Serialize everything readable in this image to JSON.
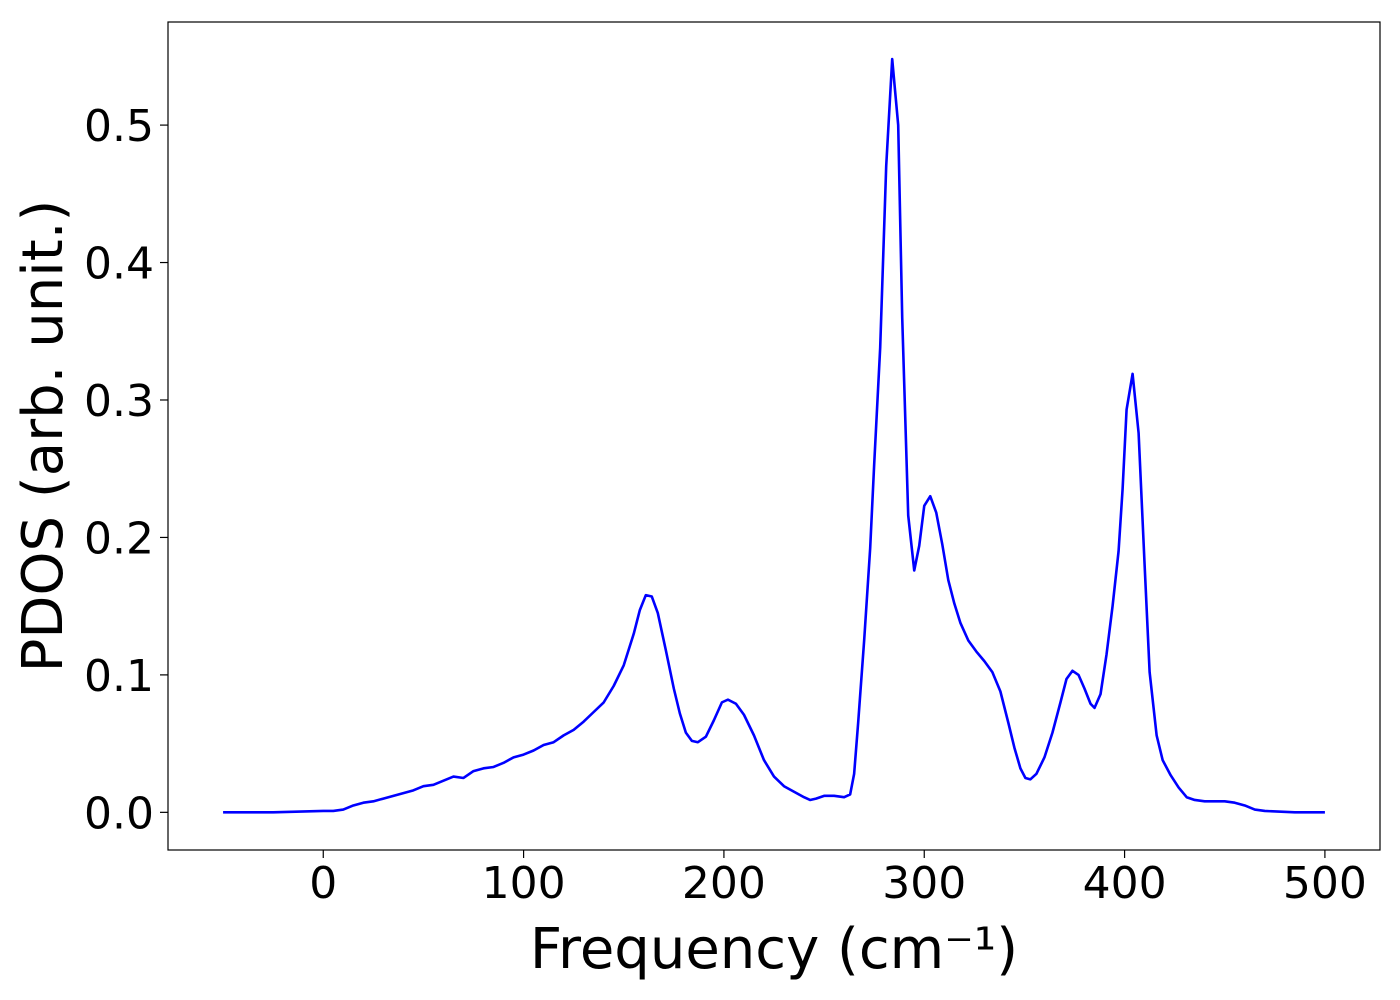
{
  "chart_data": {
    "type": "line",
    "xlabel": "Frequency (cm⁻¹)",
    "ylabel": "PDOS (arb. unit.)",
    "xlim": [
      -77.5,
      527.5
    ],
    "ylim": [
      -0.0274,
      0.575
    ],
    "xticks": [
      0,
      100,
      200,
      300,
      400,
      500
    ],
    "yticks": [
      {
        "value": 0,
        "label": "0.0"
      },
      {
        "value": 0.1,
        "label": "0.1"
      },
      {
        "value": 0.2,
        "label": "0.2"
      },
      {
        "value": 0.3,
        "label": "0.3"
      },
      {
        "value": 0.4,
        "label": "0.4"
      },
      {
        "value": 0.5,
        "label": "0.5"
      }
    ],
    "series": [
      {
        "color": "#0000ff",
        "x": [
          -50,
          -25,
          0,
          5,
          10,
          15,
          20,
          25,
          30,
          35,
          40,
          45,
          50,
          55,
          60,
          65,
          70,
          75,
          80,
          85,
          90,
          95,
          100,
          105,
          110,
          115,
          120,
          125,
          130,
          135,
          140,
          145,
          150,
          155,
          158,
          161,
          164,
          167,
          171,
          175,
          178,
          181,
          184,
          187,
          191,
          195,
          199,
          202,
          206,
          210,
          215,
          220,
          225,
          230,
          235,
          240,
          243,
          246,
          250,
          255,
          260,
          263,
          265,
          267,
          270,
          273,
          275,
          278,
          281,
          284,
          287,
          289,
          292,
          295,
          297.5,
          300,
          303,
          306,
          309,
          312,
          315,
          318,
          322,
          326,
          330,
          334,
          338,
          342,
          345,
          348,
          350.5,
          353,
          356,
          360,
          364,
          368,
          371,
          374,
          377,
          380,
          383,
          385,
          388,
          391,
          394,
          397,
          399,
          401,
          404,
          407,
          410,
          412.5,
          416,
          419,
          423,
          427,
          431,
          435,
          440,
          445,
          450,
          455,
          460,
          465,
          470,
          485,
          500
        ],
        "values": [
          0,
          0,
          0.001,
          0.001,
          0.002,
          0.005,
          0.007,
          0.008,
          0.01,
          0.012,
          0.014,
          0.016,
          0.019,
          0.02,
          0.023,
          0.026,
          0.025,
          0.03,
          0.032,
          0.033,
          0.036,
          0.04,
          0.042,
          0.045,
          0.049,
          0.051,
          0.056,
          0.06,
          0.066,
          0.073,
          0.08,
          0.092,
          0.107,
          0.13,
          0.147,
          0.158,
          0.157,
          0.145,
          0.118,
          0.09,
          0.072,
          0.058,
          0.052,
          0.051,
          0.055,
          0.067,
          0.08,
          0.082,
          0.079,
          0.071,
          0.056,
          0.038,
          0.026,
          0.019,
          0.015,
          0.011,
          0.009,
          0.01,
          0.012,
          0.012,
          0.011,
          0.013,
          0.028,
          0.065,
          0.125,
          0.192,
          0.253,
          0.338,
          0.47,
          0.548,
          0.5,
          0.36,
          0.216,
          0.176,
          0.194,
          0.223,
          0.23,
          0.218,
          0.195,
          0.169,
          0.152,
          0.138,
          0.125,
          0.117,
          0.11,
          0.102,
          0.088,
          0.065,
          0.047,
          0.032,
          0.025,
          0.024,
          0.028,
          0.04,
          0.058,
          0.08,
          0.097,
          0.103,
          0.1,
          0.09,
          0.079,
          0.076,
          0.086,
          0.115,
          0.15,
          0.19,
          0.235,
          0.293,
          0.319,
          0.276,
          0.18,
          0.102,
          0.056,
          0.038,
          0.027,
          0.018,
          0.011,
          0.009,
          0.008,
          0.008,
          0.008,
          0.007,
          0.005,
          0.002,
          0.001,
          0,
          0
        ]
      }
    ]
  }
}
